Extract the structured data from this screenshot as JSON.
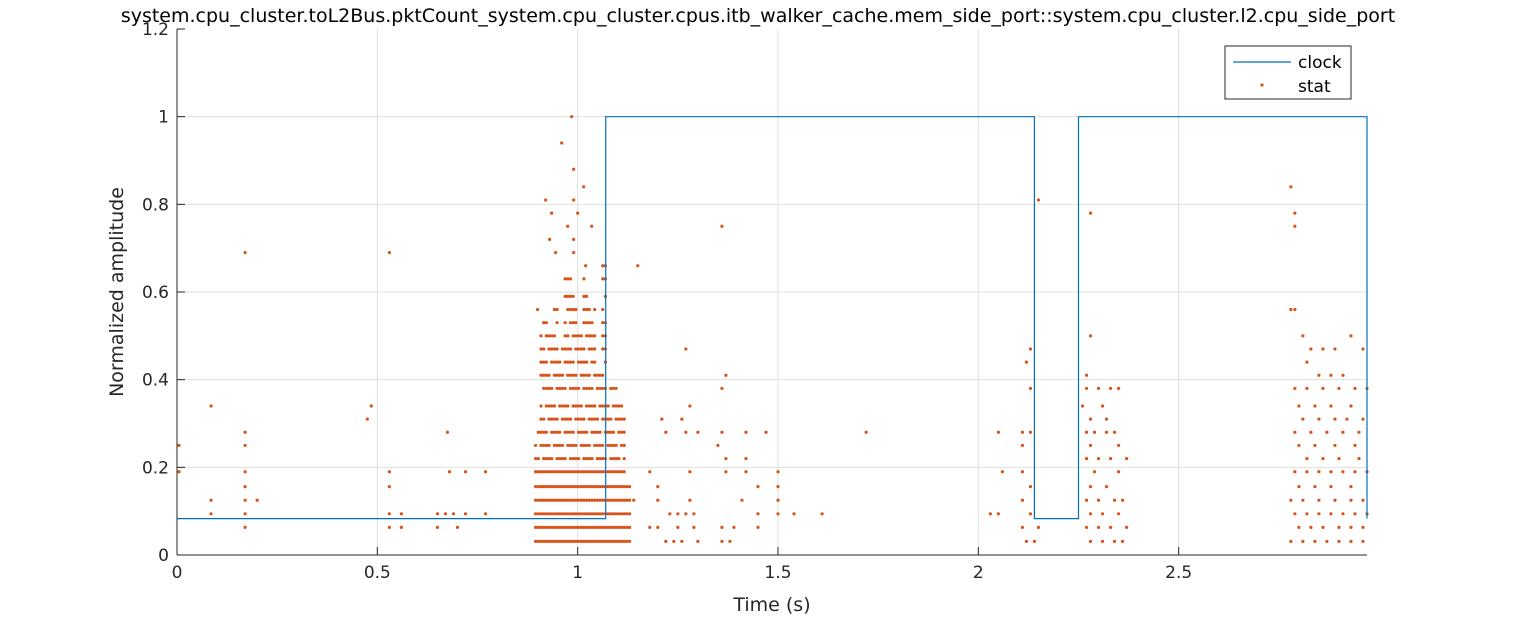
{
  "chart_data": {
    "type": "line",
    "title": "system.cpu_cluster.toL2Bus.pktCount_system.cpu_cluster.cpus.itb_walker_cache.mem_side_port::system.cpu_cluster.l2.cpu_side_port",
    "xlabel": "Time (s)",
    "ylabel": "Normalized amplitude",
    "xlim": [
      0,
      2.97
    ],
    "ylim": [
      0,
      1.2
    ],
    "xticks": [
      0,
      0.5,
      1,
      1.5,
      2,
      2.5
    ],
    "xtick_labels": [
      "0",
      "0.5",
      "1",
      "1.5",
      "2",
      "2.5"
    ],
    "yticks": [
      0,
      0.2,
      0.4,
      0.6,
      0.8,
      1,
      1.2
    ],
    "ytick_labels": [
      "0",
      "0.2",
      "0.4",
      "0.6",
      "0.8",
      "1",
      "1.2"
    ],
    "grid": true,
    "legend_position": "top-right",
    "colors": {
      "clock": "#0072bd",
      "stat": "#d95319"
    },
    "series": [
      {
        "name": "clock",
        "style": "line",
        "x": [
          0,
          1.07,
          1.07,
          2.14,
          2.14,
          2.25,
          2.25,
          2.97,
          2.97
        ],
        "y": [
          0.083,
          0.083,
          1,
          1,
          0.083,
          0.083,
          1,
          1,
          0.083
        ]
      },
      {
        "name": "stat",
        "style": "markers",
        "points": [
          [
            0.005,
            0.25
          ],
          [
            0.005,
            0.19
          ],
          [
            0.085,
            0.34
          ],
          [
            0.085,
            0.125
          ],
          [
            0.085,
            0.094
          ],
          [
            0.17,
            0.69
          ],
          [
            0.17,
            0.28
          ],
          [
            0.17,
            0.25
          ],
          [
            0.17,
            0.19
          ],
          [
            0.17,
            0.156
          ],
          [
            0.17,
            0.125
          ],
          [
            0.17,
            0.094
          ],
          [
            0.17,
            0.063
          ],
          [
            0.2,
            0.125
          ],
          [
            0.475,
            0.31
          ],
          [
            0.485,
            0.34
          ],
          [
            0.53,
            0.69
          ],
          [
            0.53,
            0.19
          ],
          [
            0.53,
            0.156
          ],
          [
            0.53,
            0.094
          ],
          [
            0.53,
            0.063
          ],
          [
            0.56,
            0.094
          ],
          [
            0.56,
            0.063
          ],
          [
            0.65,
            0.094
          ],
          [
            0.65,
            0.063
          ],
          [
            0.67,
            0.094
          ],
          [
            0.675,
            0.28
          ],
          [
            0.68,
            0.19
          ],
          [
            0.69,
            0.094
          ],
          [
            0.7,
            0.063
          ],
          [
            0.72,
            0.19
          ],
          [
            0.72,
            0.094
          ],
          [
            0.77,
            0.19
          ],
          [
            0.77,
            0.094
          ],
          [
            0.985,
            1.0
          ],
          [
            0.96,
            0.94
          ],
          [
            1.015,
            0.84
          ],
          [
            0.99,
            0.88
          ],
          [
            0.92,
            0.81
          ],
          [
            0.99,
            0.81
          ],
          [
            0.935,
            0.78
          ],
          [
            1.0,
            0.78
          ],
          [
            0.975,
            0.75
          ],
          [
            1.035,
            0.75
          ],
          [
            0.93,
            0.72
          ],
          [
            0.99,
            0.72
          ],
          [
            0.945,
            0.69
          ],
          [
            0.99,
            0.69
          ],
          [
            1.02,
            0.66
          ],
          [
            0.9,
            0.56
          ],
          [
            1.15,
            0.66
          ],
          [
            1.27,
            0.47
          ],
          [
            1.36,
            0.75
          ],
          [
            1.37,
            0.41
          ],
          [
            1.28,
            0.34
          ],
          [
            1.26,
            0.31
          ],
          [
            1.21,
            0.31
          ],
          [
            1.36,
            0.38
          ],
          [
            1.22,
            0.28
          ],
          [
            1.27,
            0.28
          ],
          [
            1.3,
            0.28
          ],
          [
            1.36,
            0.28
          ],
          [
            1.42,
            0.28
          ],
          [
            1.47,
            0.28
          ],
          [
            1.72,
            0.28
          ],
          [
            1.35,
            0.25
          ],
          [
            1.37,
            0.22
          ],
          [
            1.42,
            0.22
          ],
          [
            1.18,
            0.19
          ],
          [
            1.28,
            0.19
          ],
          [
            1.37,
            0.19
          ],
          [
            1.42,
            0.19
          ],
          [
            1.5,
            0.19
          ],
          [
            1.2,
            0.156
          ],
          [
            1.45,
            0.156
          ],
          [
            1.5,
            0.156
          ],
          [
            1.14,
            0.125
          ],
          [
            1.2,
            0.125
          ],
          [
            1.28,
            0.125
          ],
          [
            1.41,
            0.125
          ],
          [
            1.5,
            0.125
          ],
          [
            1.23,
            0.094
          ],
          [
            1.25,
            0.094
          ],
          [
            1.27,
            0.094
          ],
          [
            1.29,
            0.094
          ],
          [
            1.45,
            0.094
          ],
          [
            1.5,
            0.094
          ],
          [
            1.54,
            0.094
          ],
          [
            1.61,
            0.094
          ],
          [
            1.18,
            0.063
          ],
          [
            1.2,
            0.063
          ],
          [
            1.25,
            0.063
          ],
          [
            1.29,
            0.063
          ],
          [
            1.36,
            0.063
          ],
          [
            1.39,
            0.063
          ],
          [
            1.45,
            0.063
          ],
          [
            1.22,
            0.031
          ],
          [
            1.24,
            0.031
          ],
          [
            1.26,
            0.031
          ],
          [
            1.3,
            0.031
          ],
          [
            1.36,
            0.031
          ],
          [
            1.38,
            0.031
          ],
          [
            2.13,
            0.47
          ],
          [
            2.12,
            0.44
          ],
          [
            2.13,
            0.38
          ],
          [
            2.15,
            0.81
          ],
          [
            2.05,
            0.28
          ],
          [
            2.11,
            0.28
          ],
          [
            2.13,
            0.28
          ],
          [
            2.06,
            0.19
          ],
          [
            2.11,
            0.25
          ],
          [
            2.11,
            0.19
          ],
          [
            2.13,
            0.156
          ],
          [
            2.03,
            0.094
          ],
          [
            2.05,
            0.094
          ],
          [
            2.11,
            0.125
          ],
          [
            2.13,
            0.094
          ],
          [
            2.15,
            0.063
          ],
          [
            2.11,
            0.063
          ],
          [
            2.12,
            0.031
          ],
          [
            2.14,
            0.031
          ],
          [
            2.28,
            0.78
          ],
          [
            2.28,
            0.5
          ],
          [
            2.27,
            0.41
          ],
          [
            2.27,
            0.38
          ],
          [
            2.3,
            0.38
          ],
          [
            2.33,
            0.38
          ],
          [
            2.35,
            0.38
          ],
          [
            2.26,
            0.34
          ],
          [
            2.31,
            0.34
          ],
          [
            2.28,
            0.31
          ],
          [
            2.32,
            0.31
          ],
          [
            2.27,
            0.28
          ],
          [
            2.29,
            0.28
          ],
          [
            2.32,
            0.28
          ],
          [
            2.34,
            0.28
          ],
          [
            2.28,
            0.25
          ],
          [
            2.35,
            0.25
          ],
          [
            2.27,
            0.22
          ],
          [
            2.3,
            0.22
          ],
          [
            2.33,
            0.22
          ],
          [
            2.37,
            0.22
          ],
          [
            2.29,
            0.19
          ],
          [
            2.35,
            0.19
          ],
          [
            2.28,
            0.156
          ],
          [
            2.32,
            0.156
          ],
          [
            2.27,
            0.125
          ],
          [
            2.3,
            0.125
          ],
          [
            2.34,
            0.125
          ],
          [
            2.36,
            0.125
          ],
          [
            2.28,
            0.094
          ],
          [
            2.31,
            0.094
          ],
          [
            2.35,
            0.094
          ],
          [
            2.27,
            0.063
          ],
          [
            2.3,
            0.063
          ],
          [
            2.33,
            0.063
          ],
          [
            2.37,
            0.063
          ],
          [
            2.28,
            0.031
          ],
          [
            2.31,
            0.031
          ],
          [
            2.34,
            0.031
          ],
          [
            2.36,
            0.031
          ],
          [
            2.78,
            0.84
          ],
          [
            2.79,
            0.78
          ],
          [
            2.79,
            0.75
          ],
          [
            2.78,
            0.56
          ],
          [
            2.79,
            0.56
          ],
          [
            2.81,
            0.5
          ],
          [
            2.83,
            0.47
          ],
          [
            2.86,
            0.47
          ],
          [
            2.89,
            0.47
          ],
          [
            2.93,
            0.5
          ],
          [
            2.96,
            0.47
          ],
          [
            2.82,
            0.44
          ],
          [
            2.85,
            0.41
          ],
          [
            2.88,
            0.41
          ],
          [
            2.91,
            0.41
          ],
          [
            2.79,
            0.38
          ],
          [
            2.82,
            0.38
          ],
          [
            2.86,
            0.38
          ],
          [
            2.9,
            0.38
          ],
          [
            2.94,
            0.38
          ],
          [
            2.97,
            0.38
          ],
          [
            2.8,
            0.34
          ],
          [
            2.84,
            0.34
          ],
          [
            2.88,
            0.34
          ],
          [
            2.93,
            0.34
          ],
          [
            2.81,
            0.31
          ],
          [
            2.85,
            0.31
          ],
          [
            2.89,
            0.31
          ],
          [
            2.92,
            0.31
          ],
          [
            2.96,
            0.31
          ],
          [
            2.79,
            0.28
          ],
          [
            2.83,
            0.28
          ],
          [
            2.87,
            0.28
          ],
          [
            2.91,
            0.28
          ],
          [
            2.95,
            0.28
          ],
          [
            2.8,
            0.25
          ],
          [
            2.84,
            0.25
          ],
          [
            2.89,
            0.25
          ],
          [
            2.94,
            0.25
          ],
          [
            2.82,
            0.22
          ],
          [
            2.86,
            0.22
          ],
          [
            2.9,
            0.22
          ],
          [
            2.95,
            0.22
          ],
          [
            2.79,
            0.19
          ],
          [
            2.82,
            0.19
          ],
          [
            2.85,
            0.19
          ],
          [
            2.88,
            0.19
          ],
          [
            2.91,
            0.19
          ],
          [
            2.94,
            0.19
          ],
          [
            2.97,
            0.19
          ],
          [
            2.8,
            0.156
          ],
          [
            2.84,
            0.156
          ],
          [
            2.88,
            0.156
          ],
          [
            2.93,
            0.156
          ],
          [
            2.78,
            0.125
          ],
          [
            2.81,
            0.125
          ],
          [
            2.85,
            0.125
          ],
          [
            2.89,
            0.125
          ],
          [
            2.93,
            0.125
          ],
          [
            2.96,
            0.125
          ],
          [
            2.79,
            0.094
          ],
          [
            2.82,
            0.094
          ],
          [
            2.85,
            0.094
          ],
          [
            2.88,
            0.094
          ],
          [
            2.91,
            0.094
          ],
          [
            2.94,
            0.094
          ],
          [
            2.97,
            0.094
          ],
          [
            2.8,
            0.063
          ],
          [
            2.83,
            0.063
          ],
          [
            2.86,
            0.063
          ],
          [
            2.9,
            0.063
          ],
          [
            2.93,
            0.063
          ],
          [
            2.96,
            0.063
          ],
          [
            2.78,
            0.031
          ],
          [
            2.81,
            0.031
          ],
          [
            2.84,
            0.031
          ],
          [
            2.87,
            0.031
          ],
          [
            2.9,
            0.031
          ],
          [
            2.93,
            0.031
          ],
          [
            2.96,
            0.031
          ]
        ],
        "dense_cluster_points": {
          "x_start": 0.895,
          "x_end": 1.13,
          "x_step": 0.0067,
          "y_levels": [
            0.031,
            0.063,
            0.094,
            0.125,
            0.156,
            0.19,
            0.22,
            0.25,
            0.28,
            0.31,
            0.34,
            0.38,
            0.41,
            0.44,
            0.47,
            0.5,
            0.53,
            0.56,
            0.59,
            0.63,
            0.66
          ],
          "y_upper_bounds": [
            [
              0.9,
              0.28
            ],
            [
              0.915,
              0.53
            ],
            [
              0.93,
              0.5
            ],
            [
              0.945,
              0.56
            ],
            [
              0.96,
              0.47
            ],
            [
              0.975,
              0.63
            ],
            [
              0.99,
              0.59
            ],
            [
              1.005,
              0.5
            ],
            [
              1.02,
              0.63
            ],
            [
              1.035,
              0.56
            ],
            [
              1.05,
              0.41
            ],
            [
              1.065,
              0.66
            ],
            [
              1.08,
              0.38
            ],
            [
              1.095,
              0.38
            ],
            [
              1.11,
              0.34
            ],
            [
              1.125,
              0.16
            ]
          ]
        }
      }
    ]
  }
}
